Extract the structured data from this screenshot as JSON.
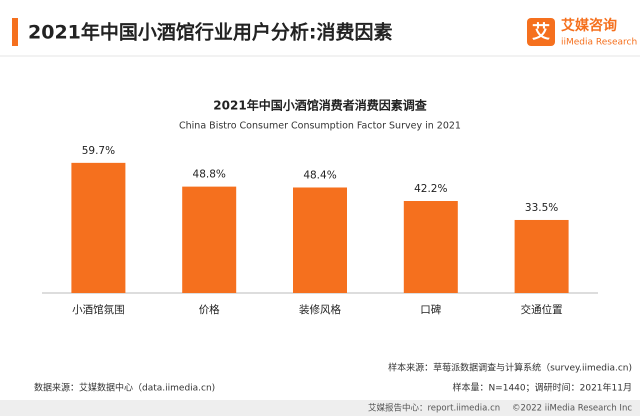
{
  "header": {
    "title": "2021年中国小酒馆行业用户分析:消费因素",
    "logo_mark": "艾",
    "logo_name": "艾媒咨询",
    "logo_sub": "iiMedia Research"
  },
  "chart_data": {
    "type": "bar",
    "title": "2021年中国小酒馆消费者消费因素调查",
    "subtitle": "China Bistro Consumer Consumption Factor Survey in 2021",
    "categories": [
      "小酒馆氛围",
      "价格",
      "装修风格",
      "口碑",
      "交通位置"
    ],
    "values": [
      59.7,
      48.8,
      48.4,
      42.2,
      33.5
    ],
    "value_labels": [
      "59.7%",
      "48.8%",
      "48.4%",
      "42.2%",
      "33.5%"
    ],
    "color": "#f5701e"
  },
  "notes": {
    "data_source": "数据来源：艾媒数据中心（data.iimedia.cn)",
    "sample_source": "样本来源：草莓派数据调查与计算系统（survey.iimedia.cn)",
    "sample_size": "样本量：N=1440；调研时间：2021年11月"
  },
  "footer": {
    "report": "艾媒报告中心：report.iimedia.cn",
    "copyright": "©2022  iiMedia Research  Inc"
  }
}
